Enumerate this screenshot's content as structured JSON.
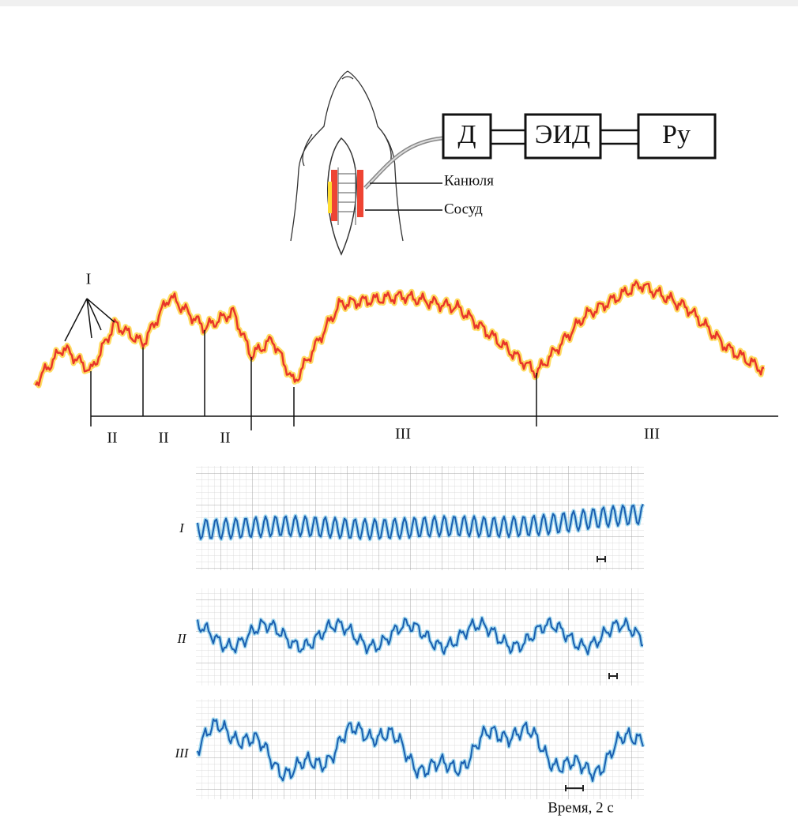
{
  "diagram": {
    "blocks": [
      "Д",
      "ЭИД",
      "Ру"
    ],
    "labels": {
      "cannula": "Канюля",
      "vessel": "Сосуд"
    },
    "wave_marker": "I",
    "phases": [
      "II",
      "II",
      "II",
      "III",
      "III"
    ],
    "records": [
      "I",
      "II",
      "III"
    ],
    "time_label": "Время, 2 с"
  }
}
